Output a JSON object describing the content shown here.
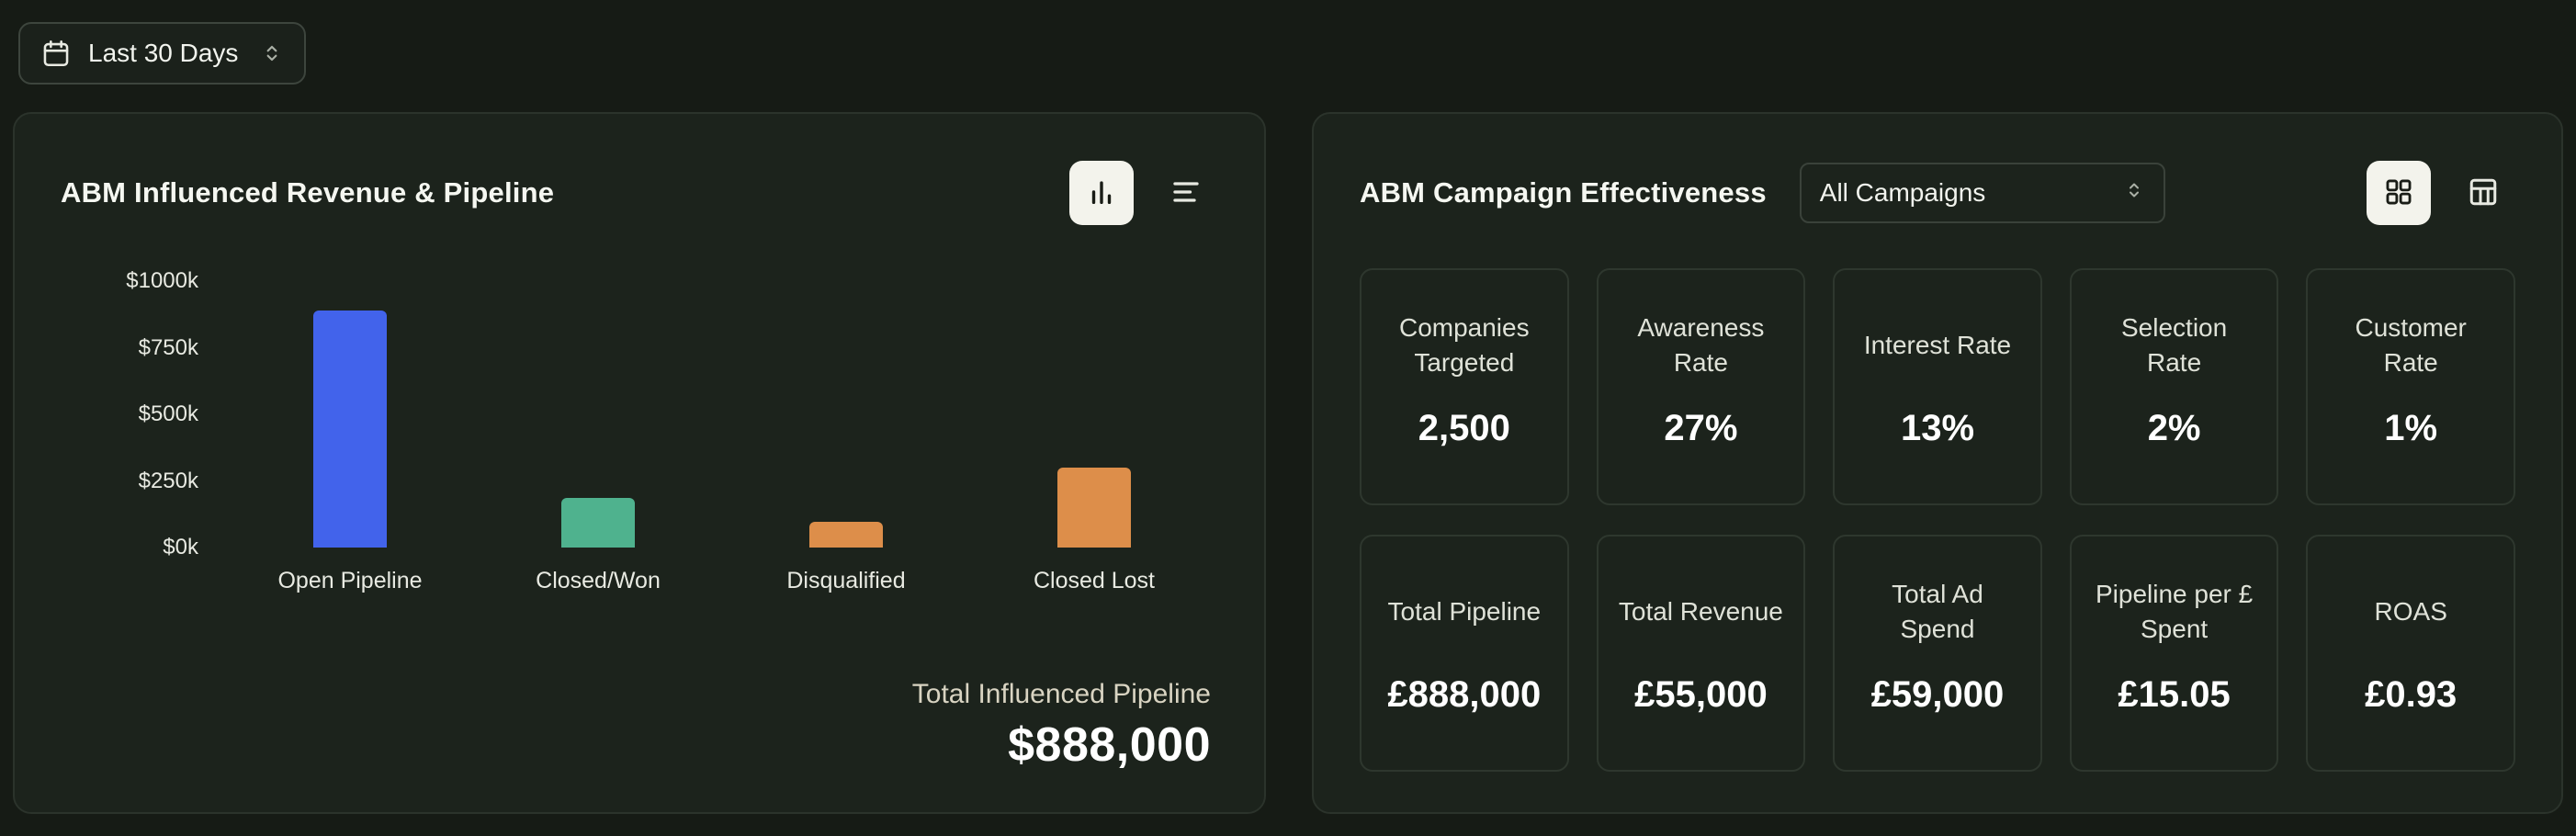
{
  "toolbar": {
    "date_range": "Last 30 Days"
  },
  "revenue_card": {
    "title": "ABM Influenced Revenue & Pipeline",
    "total_label": "Total Influenced Pipeline",
    "total_value": "$888,000"
  },
  "chart_data": {
    "type": "bar",
    "title": "ABM Influenced Revenue & Pipeline",
    "categories": [
      "Open Pipeline",
      "Closed/Won",
      "Disqualified",
      "Closed Lost"
    ],
    "values": [
      888,
      185,
      95,
      300
    ],
    "unit": "thousand USD",
    "ylim": [
      0,
      1000
    ],
    "y_ticks": [
      "$1000k",
      "$750k",
      "$500k",
      "$250k",
      "$0k"
    ],
    "colors": [
      "#4263eb",
      "#4fb28e",
      "#dd8e4a",
      "#dd8e4a"
    ],
    "grid": false,
    "legend": false
  },
  "effectiveness_card": {
    "title": "ABM Campaign Effectiveness",
    "filter_value": "All Campaigns",
    "metrics": [
      {
        "label": "Companies Targeted",
        "value": "2,500"
      },
      {
        "label": "Awareness Rate",
        "value": "27%"
      },
      {
        "label": "Interest Rate",
        "value": "13%"
      },
      {
        "label": "Selection Rate",
        "value": "2%"
      },
      {
        "label": "Customer Rate",
        "value": "1%"
      },
      {
        "label": "Total Pipeline",
        "value": "£888,000"
      },
      {
        "label": "Total Revenue",
        "value": "£55,000"
      },
      {
        "label": "Total Ad Spend",
        "value": "£59,000"
      },
      {
        "label": "Pipeline per £ Spent",
        "value": "£15.05"
      },
      {
        "label": "ROAS",
        "value": "£0.93"
      }
    ]
  },
  "colors": {
    "page_bg": "#161b15",
    "card_bg": "#1c231c",
    "accent_blue": "#4263eb",
    "accent_teal": "#4fb28e",
    "accent_orange": "#dd8e4a"
  }
}
